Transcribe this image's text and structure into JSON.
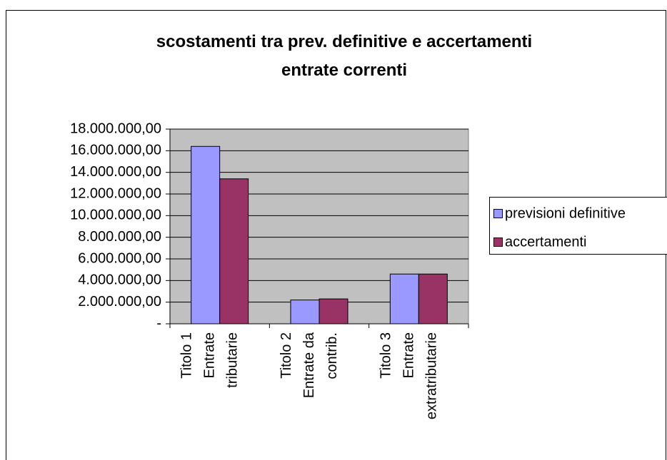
{
  "chart_data": {
    "type": "bar",
    "title": "scostamenti tra prev. definitive e accertamenti\nentrate correnti",
    "categories": [
      "Titolo 1\nEntrate\ntributarie",
      "Titolo 2\nEntrate da\ncontrib.",
      "Titolo 3\nEntrate\nextratributarie"
    ],
    "series": [
      {
        "name": "previsioni definitive",
        "color": "#9999ff",
        "values": [
          16400000,
          2200000,
          4600000
        ]
      },
      {
        "name": "accertamenti",
        "color": "#993366",
        "values": [
          13400000,
          2300000,
          4600000
        ]
      }
    ],
    "ylim": [
      0,
      18000000
    ],
    "yticks": [
      {
        "value": 0,
        "label": "-"
      },
      {
        "value": 2000000,
        "label": "2.000.000,00"
      },
      {
        "value": 4000000,
        "label": "4.000.000,00"
      },
      {
        "value": 6000000,
        "label": "6.000.000,00"
      },
      {
        "value": 8000000,
        "label": "8.000.000,00"
      },
      {
        "value": 10000000,
        "label": "10.000.000,00"
      },
      {
        "value": 12000000,
        "label": "12.000.000,00"
      },
      {
        "value": 14000000,
        "label": "14.000.000,00"
      },
      {
        "value": 16000000,
        "label": "16.000.000,00"
      },
      {
        "value": 18000000,
        "label": "18.000.000,00"
      }
    ],
    "grid": true,
    "legend": "right",
    "plot_background": "#c0c0c0"
  }
}
